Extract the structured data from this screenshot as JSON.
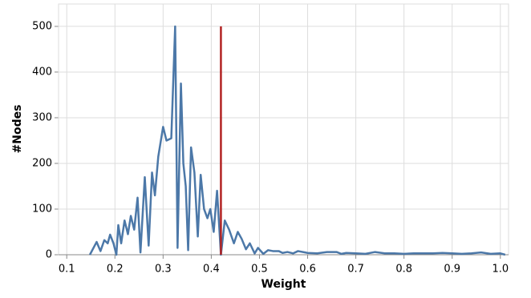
{
  "chart_data": {
    "type": "line",
    "x_label": "Weight",
    "y_label": "#Nodes",
    "x": [
      0.148,
      0.162,
      0.17,
      0.178,
      0.185,
      0.19,
      0.197,
      0.203,
      0.207,
      0.213,
      0.22,
      0.227,
      0.233,
      0.24,
      0.247,
      0.253,
      0.262,
      0.27,
      0.277,
      0.283,
      0.29,
      0.3,
      0.307,
      0.317,
      0.325,
      0.33,
      0.337,
      0.342,
      0.347,
      0.352,
      0.358,
      0.365,
      0.372,
      0.378,
      0.385,
      0.392,
      0.398,
      0.405,
      0.412,
      0.42,
      0.428,
      0.437,
      0.447,
      0.455,
      0.463,
      0.472,
      0.48,
      0.49,
      0.497,
      0.508,
      0.518,
      0.528,
      0.54,
      0.548,
      0.558,
      0.57,
      0.58,
      0.6,
      0.62,
      0.64,
      0.66,
      0.67,
      0.68,
      0.7,
      0.72,
      0.74,
      0.76,
      0.78,
      0.8,
      0.82,
      0.84,
      0.86,
      0.88,
      0.9,
      0.92,
      0.94,
      0.96,
      0.98,
      1.0,
      1.01
    ],
    "values": [
      0,
      28,
      8,
      32,
      25,
      44,
      25,
      0,
      65,
      25,
      75,
      45,
      85,
      55,
      125,
      5,
      170,
      20,
      180,
      130,
      215,
      280,
      250,
      255,
      500,
      15,
      375,
      200,
      150,
      10,
      235,
      180,
      40,
      175,
      100,
      80,
      100,
      50,
      140,
      0,
      75,
      55,
      25,
      50,
      35,
      12,
      25,
      3,
      15,
      2,
      10,
      8,
      8,
      4,
      6,
      3,
      8,
      4,
      3,
      6,
      6,
      2,
      4,
      3,
      2,
      6,
      3,
      3,
      2,
      3,
      3,
      3,
      4,
      3,
      2,
      3,
      5,
      2,
      3,
      0
    ],
    "color": "#4c78a8",
    "rule": {
      "x": 0.42,
      "color": "#b22222"
    },
    "xlim": [
      0.083,
      1.017
    ],
    "ylim": [
      0,
      549
    ],
    "xticks": [
      0.1,
      0.2,
      0.3,
      0.4,
      0.5,
      0.6,
      0.7,
      0.8,
      0.9,
      {
        "value": 1,
        "label": "1.0"
      }
    ],
    "yticks": [
      0,
      100,
      200,
      300,
      400,
      500
    ],
    "grid": true
  }
}
